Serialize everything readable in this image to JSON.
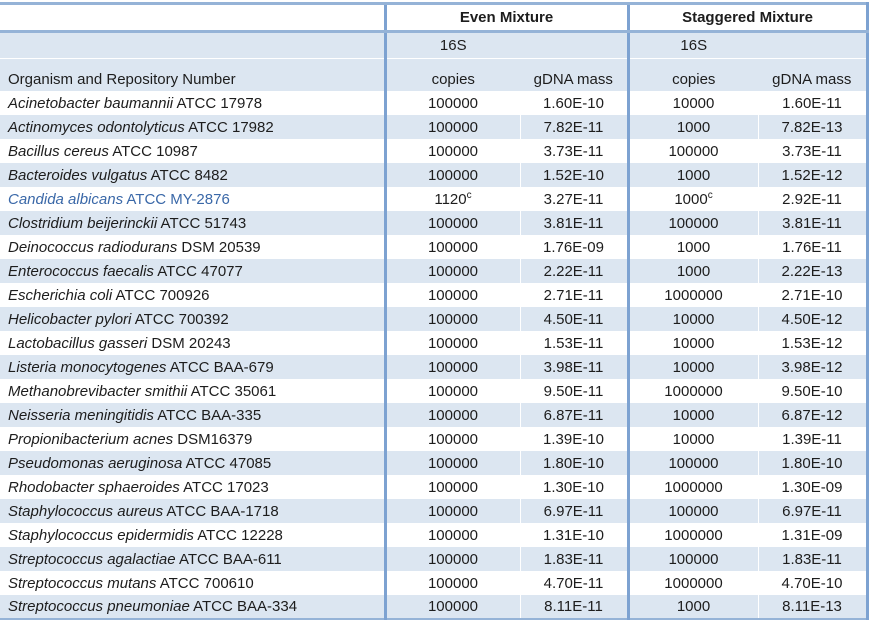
{
  "table": {
    "headers": {
      "even_mixture": "Even Mixture",
      "staggered_mixture": "Staggered Mixture",
      "organism": "Organism and Repository Number",
      "copies_line1": "16S",
      "copies_line2": "copies",
      "gdna_mass": "gDNA mass"
    },
    "colors": {
      "stripe": "#dce6f1",
      "border_horizontal": "#95b3d7",
      "border_vertical": "#7da2d1",
      "text": "#1d1d1d",
      "highlight_text": "#3a68a8"
    },
    "footnote_marker": "c",
    "rows": [
      {
        "name": "Acinetobacter baumannii",
        "repo": "ATCC 17978",
        "even_copies": "100000",
        "even_sup": "",
        "even_mass": "1.60E-10",
        "stag_copies": "10000",
        "stag_sup": "",
        "stag_mass": "1.60E-11",
        "highlight": false
      },
      {
        "name": "Actinomyces odontolyticus",
        "repo": "ATCC 17982",
        "even_copies": "100000",
        "even_sup": "",
        "even_mass": "7.82E-11",
        "stag_copies": "1000",
        "stag_sup": "",
        "stag_mass": "7.82E-13",
        "highlight": false
      },
      {
        "name": "Bacillus cereus",
        "repo": "ATCC 10987",
        "even_copies": "100000",
        "even_sup": "",
        "even_mass": "3.73E-11",
        "stag_copies": "100000",
        "stag_sup": "",
        "stag_mass": "3.73E-11",
        "highlight": false
      },
      {
        "name": "Bacteroides vulgatus",
        "repo": "ATCC 8482",
        "even_copies": "100000",
        "even_sup": "",
        "even_mass": "1.52E-10",
        "stag_copies": "1000",
        "stag_sup": "",
        "stag_mass": "1.52E-12",
        "highlight": false
      },
      {
        "name": "Candida albicans",
        "repo": "ATCC MY-2876",
        "even_copies": "1120",
        "even_sup": "c",
        "even_mass": "3.27E-11",
        "stag_copies": "1000",
        "stag_sup": "c",
        "stag_mass": "2.92E-11",
        "highlight": true
      },
      {
        "name": "Clostridium beijerinckii",
        "repo": "ATCC 51743",
        "even_copies": "100000",
        "even_sup": "",
        "even_mass": "3.81E-11",
        "stag_copies": "100000",
        "stag_sup": "",
        "stag_mass": "3.81E-11",
        "highlight": false
      },
      {
        "name": "Deinococcus radiodurans",
        "repo": "DSM 20539",
        "even_copies": "100000",
        "even_sup": "",
        "even_mass": "1.76E-09",
        "stag_copies": "1000",
        "stag_sup": "",
        "stag_mass": "1.76E-11",
        "highlight": false
      },
      {
        "name": "Enterococcus faecalis",
        "repo": "ATCC 47077",
        "even_copies": "100000",
        "even_sup": "",
        "even_mass": "2.22E-11",
        "stag_copies": "1000",
        "stag_sup": "",
        "stag_mass": "2.22E-13",
        "highlight": false
      },
      {
        "name": "Escherichia coli",
        "repo": "ATCC 700926",
        "even_copies": "100000",
        "even_sup": "",
        "even_mass": "2.71E-11",
        "stag_copies": "1000000",
        "stag_sup": "",
        "stag_mass": "2.71E-10",
        "highlight": false
      },
      {
        "name": "Helicobacter pylori",
        "repo": "ATCC 700392",
        "even_copies": "100000",
        "even_sup": "",
        "even_mass": "4.50E-11",
        "stag_copies": "10000",
        "stag_sup": "",
        "stag_mass": "4.50E-12",
        "highlight": false
      },
      {
        "name": "Lactobacillus gasseri",
        "repo": "DSM 20243",
        "even_copies": "100000",
        "even_sup": "",
        "even_mass": "1.53E-11",
        "stag_copies": "10000",
        "stag_sup": "",
        "stag_mass": "1.53E-12",
        "highlight": false
      },
      {
        "name": "Listeria monocytogenes",
        "repo": "ATCC BAA-679",
        "even_copies": "100000",
        "even_sup": "",
        "even_mass": "3.98E-11",
        "stag_copies": "10000",
        "stag_sup": "",
        "stag_mass": "3.98E-12",
        "highlight": false
      },
      {
        "name": "Methanobrevibacter smithii",
        "repo": "ATCC 35061",
        "even_copies": "100000",
        "even_sup": "",
        "even_mass": "9.50E-11",
        "stag_copies": "1000000",
        "stag_sup": "",
        "stag_mass": "9.50E-10",
        "highlight": false
      },
      {
        "name": "Neisseria meningitidis",
        "repo": "ATCC BAA-335",
        "even_copies": "100000",
        "even_sup": "",
        "even_mass": "6.87E-11",
        "stag_copies": "10000",
        "stag_sup": "",
        "stag_mass": "6.87E-12",
        "highlight": false
      },
      {
        "name": "Propionibacterium acnes",
        "repo": "DSM16379",
        "even_copies": "100000",
        "even_sup": "",
        "even_mass": "1.39E-10",
        "stag_copies": "10000",
        "stag_sup": "",
        "stag_mass": "1.39E-11",
        "highlight": false
      },
      {
        "name": "Pseudomonas aeruginosa",
        "repo": "ATCC 47085",
        "even_copies": "100000",
        "even_sup": "",
        "even_mass": "1.80E-10",
        "stag_copies": "100000",
        "stag_sup": "",
        "stag_mass": "1.80E-10",
        "highlight": false
      },
      {
        "name": "Rhodobacter sphaeroides",
        "repo": "ATCC 17023",
        "even_copies": "100000",
        "even_sup": "",
        "even_mass": "1.30E-10",
        "stag_copies": "1000000",
        "stag_sup": "",
        "stag_mass": "1.30E-09",
        "highlight": false
      },
      {
        "name": "Staphylococcus aureus",
        "repo": "ATCC BAA-1718",
        "even_copies": "100000",
        "even_sup": "",
        "even_mass": "6.97E-11",
        "stag_copies": "100000",
        "stag_sup": "",
        "stag_mass": "6.97E-11",
        "highlight": false
      },
      {
        "name": "Staphylococcus epidermidis",
        "repo": "ATCC 12228",
        "even_copies": "100000",
        "even_sup": "",
        "even_mass": "1.31E-10",
        "stag_copies": "1000000",
        "stag_sup": "",
        "stag_mass": "1.31E-09",
        "highlight": false
      },
      {
        "name": "Streptococcus agalactiae",
        "repo": "ATCC BAA-611",
        "even_copies": "100000",
        "even_sup": "",
        "even_mass": "1.83E-11",
        "stag_copies": "100000",
        "stag_sup": "",
        "stag_mass": "1.83E-11",
        "highlight": false
      },
      {
        "name": "Streptococcus mutans",
        "repo": "ATCC 700610",
        "even_copies": "100000",
        "even_sup": "",
        "even_mass": "4.70E-11",
        "stag_copies": "1000000",
        "stag_sup": "",
        "stag_mass": "4.70E-10",
        "highlight": false
      },
      {
        "name": "Streptococcus pneumoniae",
        "repo": "ATCC BAA-334",
        "even_copies": "100000",
        "even_sup": "",
        "even_mass": "8.11E-11",
        "stag_copies": "1000",
        "stag_sup": "",
        "stag_mass": "8.11E-13",
        "highlight": false
      }
    ]
  }
}
